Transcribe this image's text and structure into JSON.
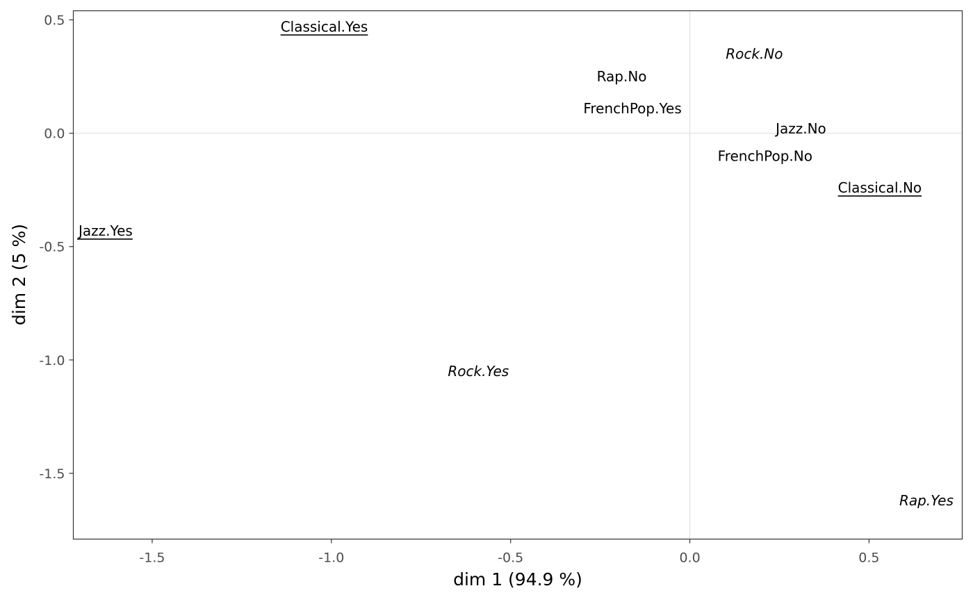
{
  "chart_data": {
    "type": "scatter",
    "title": "",
    "xlabel": "dim 1 (94.9 %)",
    "ylabel": "dim 2 (5 %)",
    "xlim": [
      -1.72,
      0.76
    ],
    "ylim": [
      -1.79,
      0.54
    ],
    "x_ticks": [
      -1.5,
      -1.0,
      -0.5,
      0.0,
      0.5
    ],
    "x_tick_labels": [
      "-1.5",
      "-1.0",
      "-0.5",
      "0.0",
      "0.5"
    ],
    "y_ticks": [
      0.5,
      0.0,
      -0.5,
      -1.0,
      -1.5
    ],
    "y_tick_labels": [
      "0.5",
      "0.0",
      "-0.5",
      "-1.0",
      "-1.5"
    ],
    "reference_lines": {
      "x": 0,
      "y": 0
    },
    "grid": false,
    "points": [
      {
        "label": "Classical.Yes",
        "x": -1.02,
        "y": 0.47,
        "style": "underline"
      },
      {
        "label": "Rock.No",
        "x": 0.18,
        "y": 0.35,
        "style": "italic"
      },
      {
        "label": "Rap.No",
        "x": -0.19,
        "y": 0.25,
        "style": "plain"
      },
      {
        "label": "FrenchPop.Yes",
        "x": -0.16,
        "y": 0.11,
        "style": "plain"
      },
      {
        "label": "Jazz.No",
        "x": 0.31,
        "y": 0.02,
        "style": "plain"
      },
      {
        "label": "FrenchPop.No",
        "x": 0.21,
        "y": -0.1,
        "style": "plain"
      },
      {
        "label": "Classical.No",
        "x": 0.53,
        "y": -0.24,
        "style": "underline"
      },
      {
        "label": "Jazz.Yes",
        "x": -1.63,
        "y": -0.43,
        "style": "underline"
      },
      {
        "label": "Rock.Yes",
        "x": -0.59,
        "y": -1.05,
        "style": "italic"
      },
      {
        "label": "Rap.Yes",
        "x": 0.66,
        "y": -1.62,
        "style": "italic"
      }
    ]
  }
}
